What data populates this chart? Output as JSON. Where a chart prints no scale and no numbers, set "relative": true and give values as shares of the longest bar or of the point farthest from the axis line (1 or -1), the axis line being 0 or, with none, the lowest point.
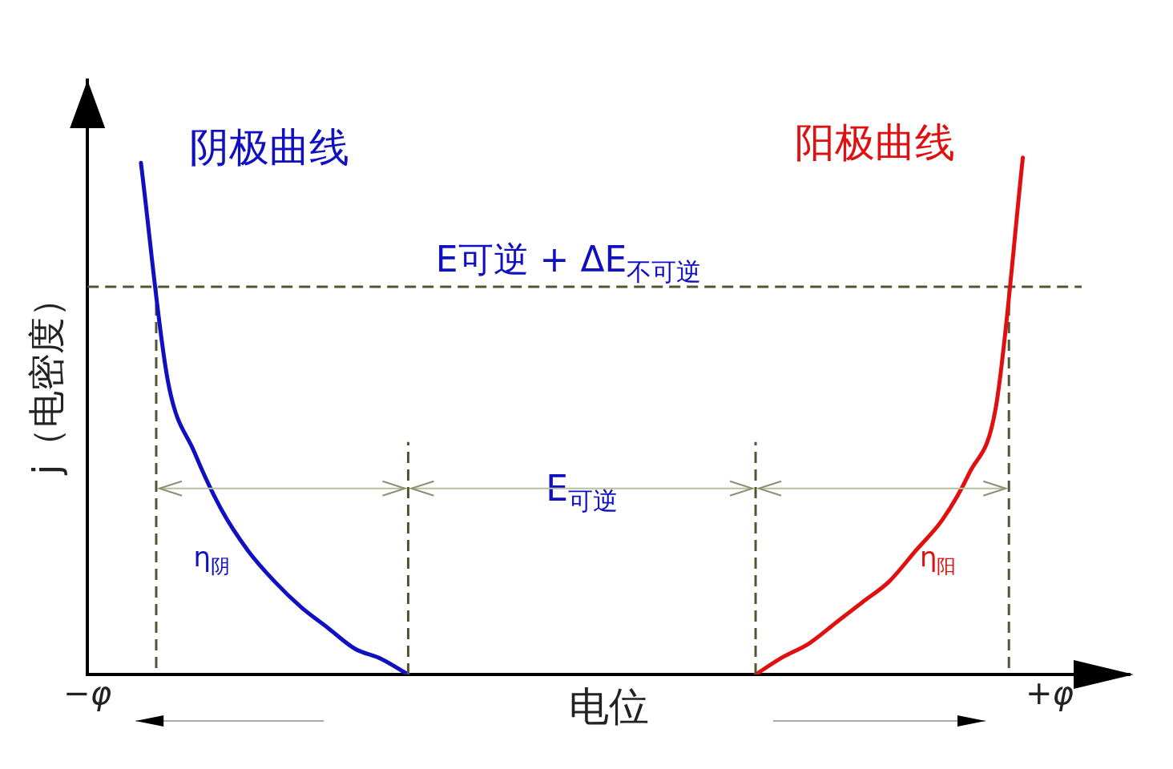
{
  "chart_data": {
    "type": "line",
    "relative": true,
    "xlabel": "电位",
    "ylabel": "j（电密度）",
    "categories": [
      "−φ",
      null,
      null,
      null,
      null,
      null,
      null,
      null,
      null,
      null,
      null,
      null,
      null,
      null,
      null,
      null,
      null,
      null,
      null,
      null,
      null,
      null,
      null,
      null,
      null,
      null,
      null,
      null,
      null,
      null,
      null,
      null,
      null,
      null,
      null,
      null,
      "+φ"
    ],
    "series": [
      {
        "name": "阴极曲线",
        "color": "#1010c0",
        "values": [
          null,
          null,
          0.99,
          0.57,
          0.43,
          0.32,
          0.24,
          0.18,
          0.13,
          0.09,
          0.05,
          0.03,
          0,
          null,
          null,
          null,
          null,
          null,
          null,
          null,
          null,
          null,
          null,
          null,
          null,
          null,
          null,
          null,
          null,
          null,
          null,
          null,
          null,
          null,
          null,
          null,
          null
        ]
      },
      {
        "name": "阳极曲线",
        "color": "#e01010",
        "values": [
          null,
          null,
          null,
          null,
          null,
          null,
          null,
          null,
          null,
          null,
          null,
          null,
          null,
          null,
          null,
          null,
          null,
          null,
          null,
          null,
          null,
          null,
          null,
          null,
          null,
          0,
          0.033,
          0.06,
          0.1,
          0.14,
          0.18,
          0.24,
          0.3,
          0.39,
          0.52,
          1.0,
          null
        ]
      }
    ],
    "ref_lines": [
      {
        "axis": "y",
        "value": 0.75,
        "color": "#555533",
        "line_style": "dashed"
      }
    ],
    "annotations": [
      "E可逆 + ΔE$_{不可逆}$",
      "E$_{可逆}$",
      "η$_{阴}$",
      "η$_{阳}$"
    ],
    "grid": false,
    "legend": false,
    "marker": "none",
    "line_style": "solid",
    "tick_labels": "x"
  }
}
